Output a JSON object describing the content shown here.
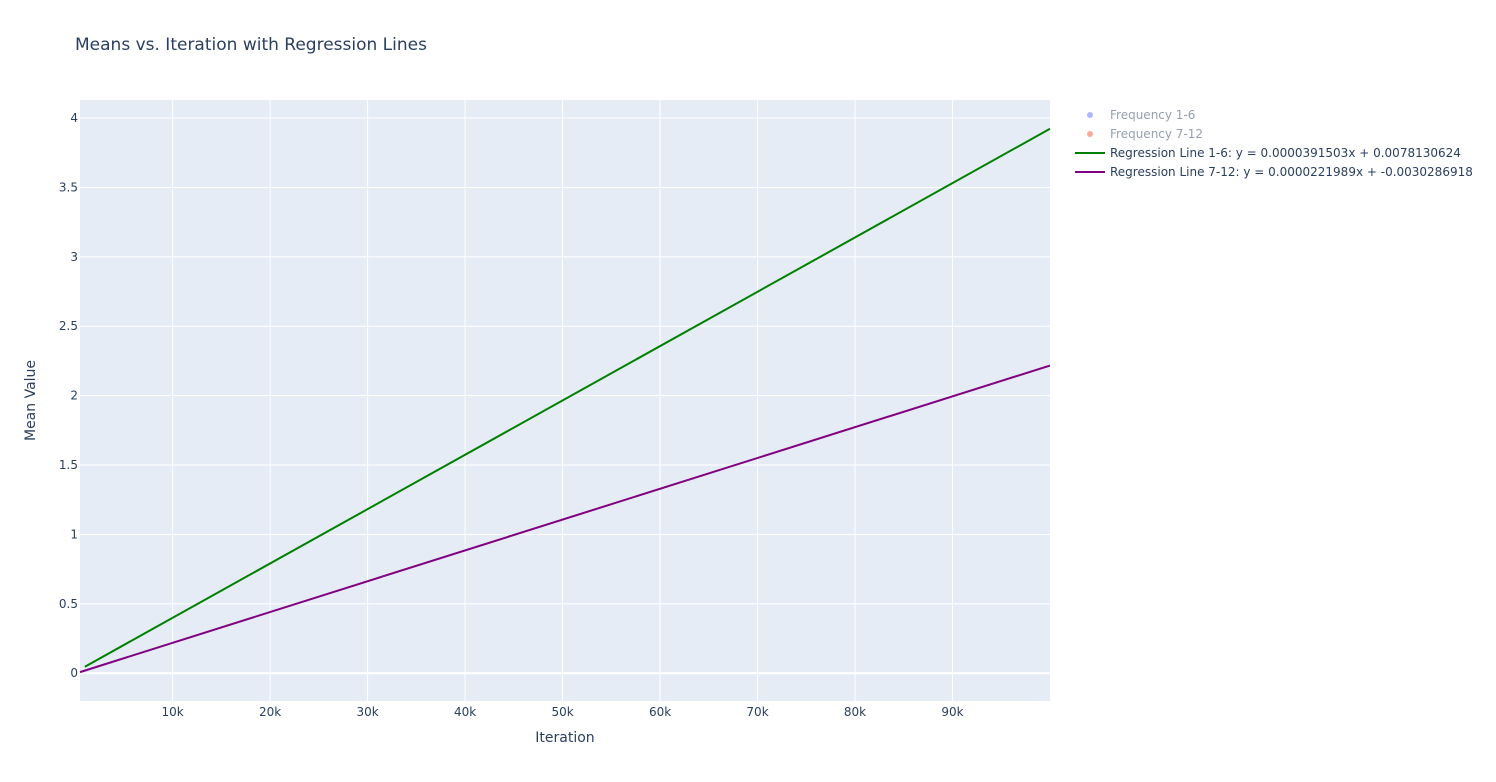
{
  "colors": {
    "plot_background": "#e5ecf6",
    "grid": "#ffffff",
    "text": "#2a3f5f"
  },
  "chart_data": {
    "type": "line",
    "title": "Means vs. Iteration with Regression Lines",
    "xlabel": "Iteration",
    "ylabel": "Mean Value",
    "xlim": [
      500,
      100000
    ],
    "ylim": [
      -0.2,
      4.13
    ],
    "grid": true,
    "legend_position": "right",
    "x_ticks": [
      {
        "value": 10000,
        "label": "10k"
      },
      {
        "value": 20000,
        "label": "20k"
      },
      {
        "value": 30000,
        "label": "30k"
      },
      {
        "value": 40000,
        "label": "40k"
      },
      {
        "value": 50000,
        "label": "50k"
      },
      {
        "value": 60000,
        "label": "60k"
      },
      {
        "value": 70000,
        "label": "70k"
      },
      {
        "value": 80000,
        "label": "80k"
      },
      {
        "value": 90000,
        "label": "90k"
      }
    ],
    "y_ticks": [
      {
        "value": 0,
        "label": "0"
      },
      {
        "value": 0.5,
        "label": "0.5"
      },
      {
        "value": 1,
        "label": "1"
      },
      {
        "value": 1.5,
        "label": "1.5"
      },
      {
        "value": 2,
        "label": "2"
      },
      {
        "value": 2.5,
        "label": "2.5"
      },
      {
        "value": 3,
        "label": "3"
      },
      {
        "value": 3.5,
        "label": "3.5"
      },
      {
        "value": 4,
        "label": "4"
      }
    ],
    "series": [
      {
        "name": "Frequency 1-6",
        "kind": "markers",
        "color": "#636efa",
        "visible": false,
        "x": [],
        "y": []
      },
      {
        "name": "Frequency 7-12",
        "kind": "markers",
        "color": "#ef553b",
        "visible": false,
        "x": [],
        "y": []
      },
      {
        "name": "Regression Line 1-6: y = 0.0000391503x + 0.0078130624",
        "kind": "line",
        "color": "#008000",
        "visible": true,
        "x": [
          1000,
          100000
        ],
        "y": [
          0.047,
          3.9228
        ]
      },
      {
        "name": "Regression Line 7-12: y = 0.0000221989x + -0.0030286918",
        "kind": "line",
        "color": "#800080",
        "visible": true,
        "x": [
          500,
          100000
        ],
        "y": [
          0.0081,
          2.2169
        ]
      }
    ]
  }
}
